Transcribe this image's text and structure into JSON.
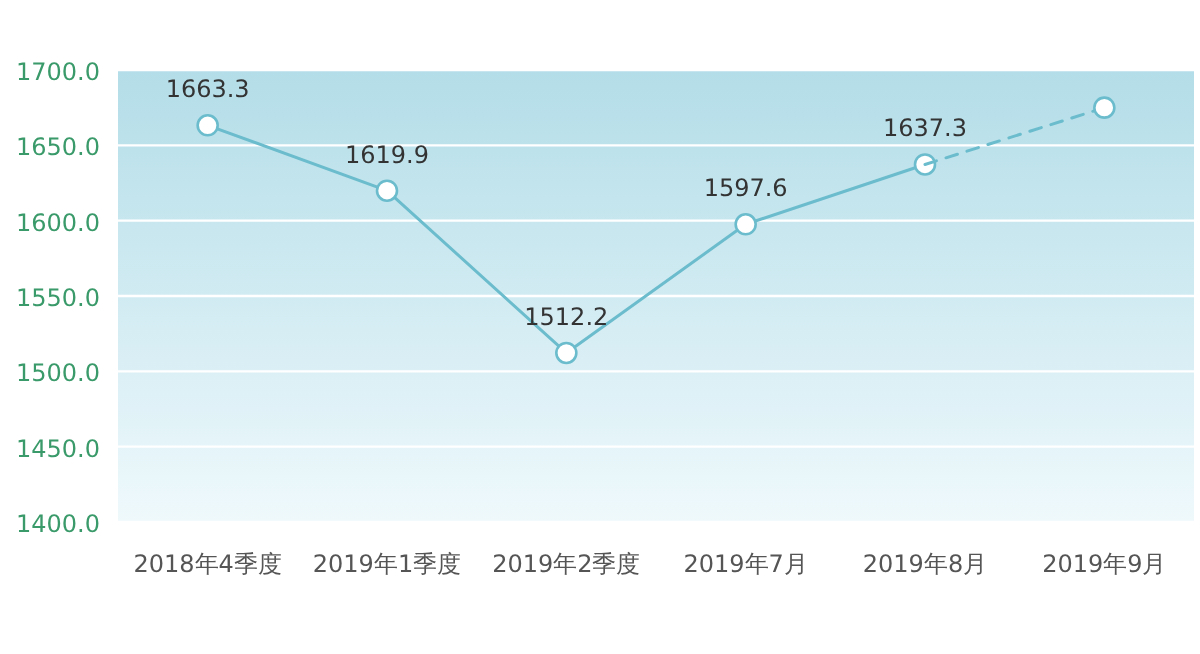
{
  "chart_data": {
    "type": "line",
    "categories": [
      "2018年4季度",
      "2019年1季度",
      "2019年2季度",
      "2019年7月",
      "2019年8月",
      "2019年9月"
    ],
    "series": [
      {
        "color": "#6bbccc",
        "line_style": "solid",
        "values": [
          1663.3,
          1619.9,
          1512.2,
          1597.6,
          1637.3,
          null
        ],
        "value_labels": [
          "1663.3",
          "1619.9",
          "1512.2",
          "1597.6",
          "1637.3",
          null
        ]
      },
      {
        "color": "#6bbccc",
        "line_style": "dashed",
        "values": [
          null,
          null,
          null,
          null,
          1637.3,
          1675
        ]
      }
    ],
    "ylim": [
      1400,
      1700
    ],
    "yticks": [
      {
        "value": 1400,
        "label": "1400.0"
      },
      {
        "value": 1450,
        "label": "1450.0"
      },
      {
        "value": 1500,
        "label": "1500.0"
      },
      {
        "value": 1550,
        "label": "1550.0"
      },
      {
        "value": 1600,
        "label": "1600.0"
      },
      {
        "value": 1650,
        "label": "1650.0"
      },
      {
        "value": 1700,
        "label": "1700.0"
      }
    ],
    "grid": "y",
    "marker": "circle"
  }
}
